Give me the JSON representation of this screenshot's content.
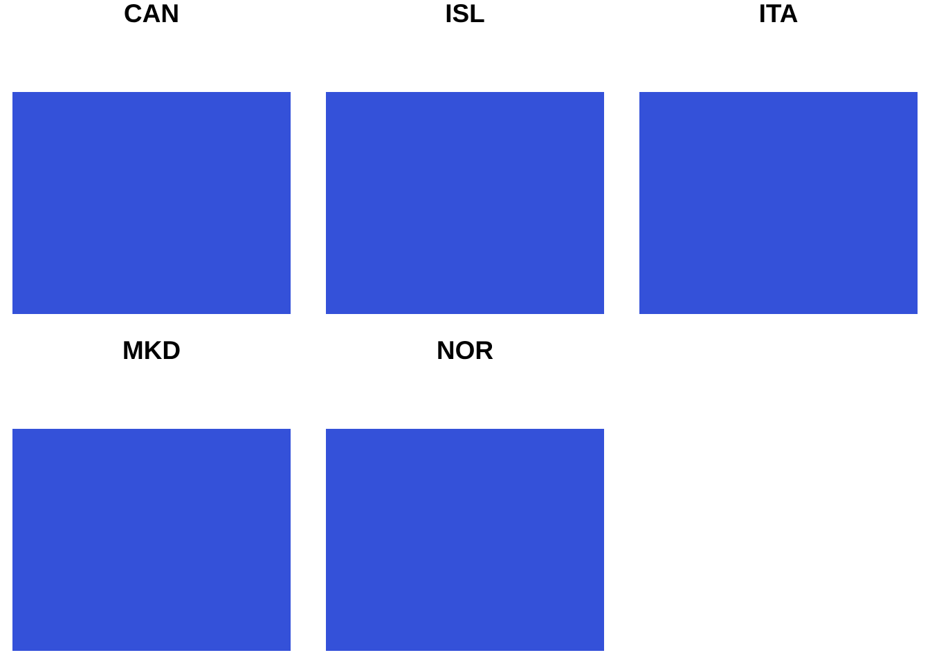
{
  "chart_data": {
    "type": "bar",
    "layout": "facet-grid",
    "columns": 3,
    "fill_color": "#3451D9",
    "grid": false,
    "axes_visible": false,
    "panels": [
      {
        "title": "CAN"
      },
      {
        "title": "ISL"
      },
      {
        "title": "ITA"
      },
      {
        "title": "MKD"
      },
      {
        "title": "NOR"
      }
    ]
  }
}
